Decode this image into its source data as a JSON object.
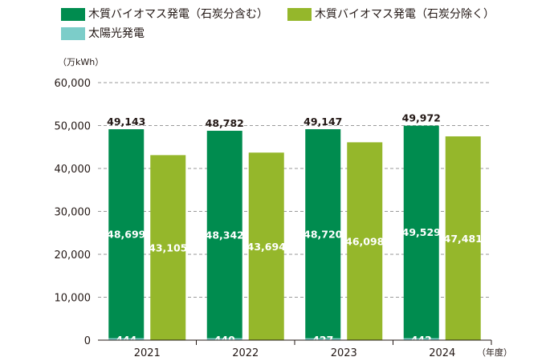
{
  "chart_data": {
    "type": "bar",
    "stacked_first_group": true,
    "y_unit": "（万kWh）",
    "x_unit": "（年度）",
    "categories": [
      "2021",
      "2022",
      "2023",
      "2024"
    ],
    "ylim": [
      0,
      60000
    ],
    "yticks": [
      "0",
      "10,000",
      "20,000",
      "30,000",
      "40,000",
      "50,000",
      "60,000"
    ],
    "ytick_values": [
      0,
      10000,
      20000,
      30000,
      40000,
      50000,
      60000
    ],
    "grid": true,
    "legend_position": "top",
    "series": [
      {
        "name": "木質バイオマス発電（石炭分含む）",
        "color": "#008c4f",
        "stack": "a",
        "values": [
          48699,
          48342,
          48720,
          49529
        ],
        "labels": [
          "48,699",
          "48,342",
          "48,720",
          "49,529"
        ]
      },
      {
        "name": "太陽光発電",
        "color": "#7ccdc9",
        "stack": "a",
        "values": [
          444,
          440,
          427,
          442
        ],
        "labels": [
          "444",
          "440",
          "427",
          "442"
        ]
      },
      {
        "name": "木質バイオマス発電（石炭分除く）",
        "color": "#95b72b",
        "stack": "b",
        "values": [
          43105,
          43694,
          46098,
          47481
        ],
        "labels": [
          "43,105",
          "43,694",
          "46,098",
          "47,481"
        ]
      }
    ],
    "totals": [
      49143,
      48782,
      49147,
      49972
    ],
    "total_labels": [
      "49,143",
      "48,782",
      "49,147",
      "49,972"
    ]
  }
}
